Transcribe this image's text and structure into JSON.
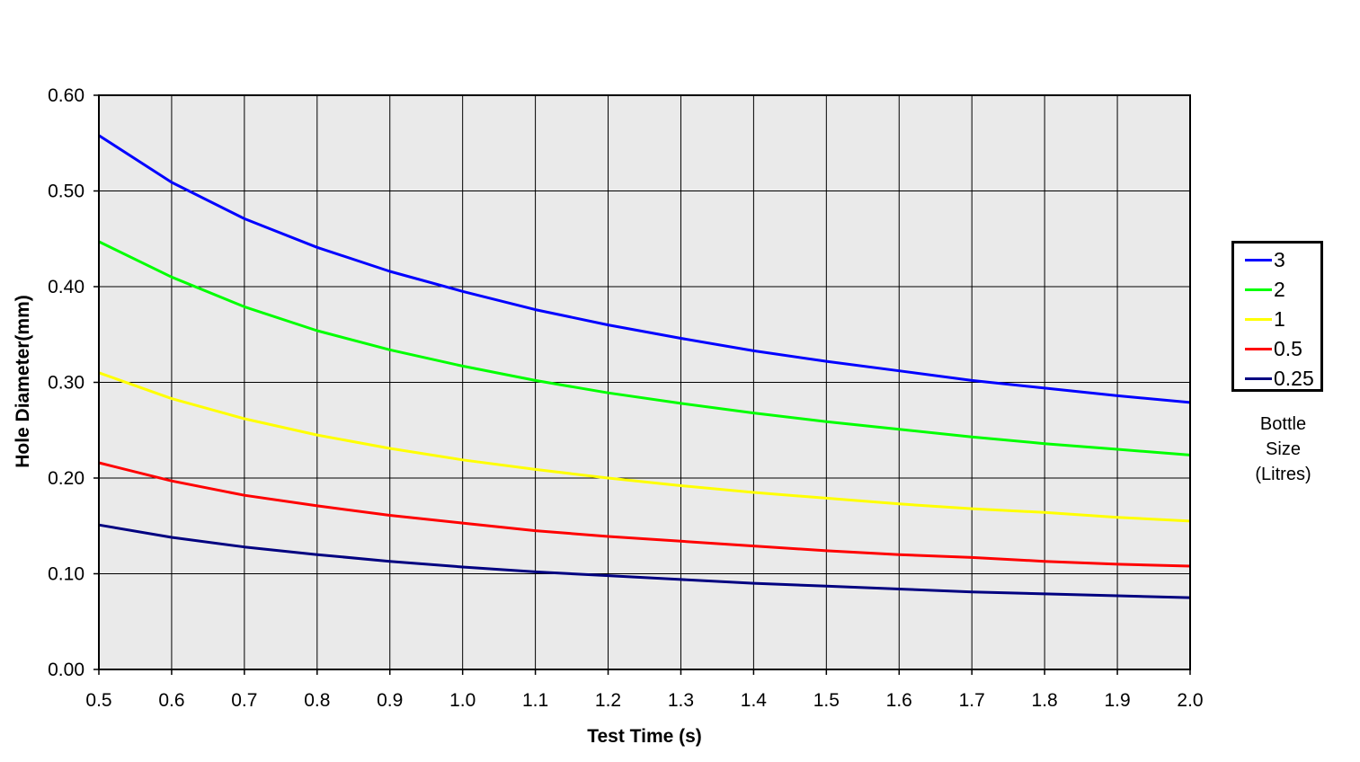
{
  "chart_data": {
    "type": "line",
    "title": "",
    "xlabel": "Test Time (s)",
    "ylabel": "Hole Diameter(mm)",
    "xlim": [
      0.5,
      2.0
    ],
    "ylim": [
      0.0,
      0.6
    ],
    "x_ticks": [
      "0.5",
      "0.6",
      "0.7",
      "0.8",
      "0.9",
      "1.0",
      "1.1",
      "1.2",
      "1.3",
      "1.4",
      "1.5",
      "1.6",
      "1.7",
      "1.8",
      "1.9",
      "2.0"
    ],
    "y_ticks": [
      "0.00",
      "0.10",
      "0.20",
      "0.30",
      "0.40",
      "0.50",
      "0.60"
    ],
    "grid": true,
    "plot_background": "#eaeaea",
    "legend_position": "right",
    "legend_title_lines": [
      "Bottle",
      "Size",
      "(Litres)"
    ],
    "x": [
      0.5,
      0.6,
      0.7,
      0.8,
      0.9,
      1.0,
      1.1,
      1.2,
      1.3,
      1.4,
      1.5,
      1.6,
      1.7,
      1.8,
      1.9,
      2.0
    ],
    "series": [
      {
        "name": "3",
        "color": "#0000ff",
        "values": [
          0.558,
          0.509,
          0.471,
          0.441,
          0.416,
          0.395,
          0.376,
          0.36,
          0.346,
          0.333,
          0.322,
          0.312,
          0.302,
          0.294,
          0.286,
          0.279
        ]
      },
      {
        "name": "2",
        "color": "#00ff00",
        "values": [
          0.447,
          0.41,
          0.379,
          0.354,
          0.334,
          0.317,
          0.302,
          0.289,
          0.278,
          0.268,
          0.259,
          0.251,
          0.243,
          0.236,
          0.23,
          0.224
        ]
      },
      {
        "name": "1",
        "color": "#ffff00",
        "values": [
          0.31,
          0.283,
          0.262,
          0.245,
          0.231,
          0.219,
          0.209,
          0.2,
          0.192,
          0.185,
          0.179,
          0.173,
          0.168,
          0.164,
          0.159,
          0.155
        ]
      },
      {
        "name": "0.5",
        "color": "#ff0000",
        "values": [
          0.216,
          0.197,
          0.182,
          0.171,
          0.161,
          0.153,
          0.145,
          0.139,
          0.134,
          0.129,
          0.124,
          0.12,
          0.117,
          0.113,
          0.11,
          0.108
        ]
      },
      {
        "name": "0.25",
        "color": "#000080",
        "values": [
          0.151,
          0.138,
          0.128,
          0.12,
          0.113,
          0.107,
          0.102,
          0.098,
          0.094,
          0.09,
          0.087,
          0.084,
          0.081,
          0.079,
          0.077,
          0.075
        ]
      }
    ]
  }
}
